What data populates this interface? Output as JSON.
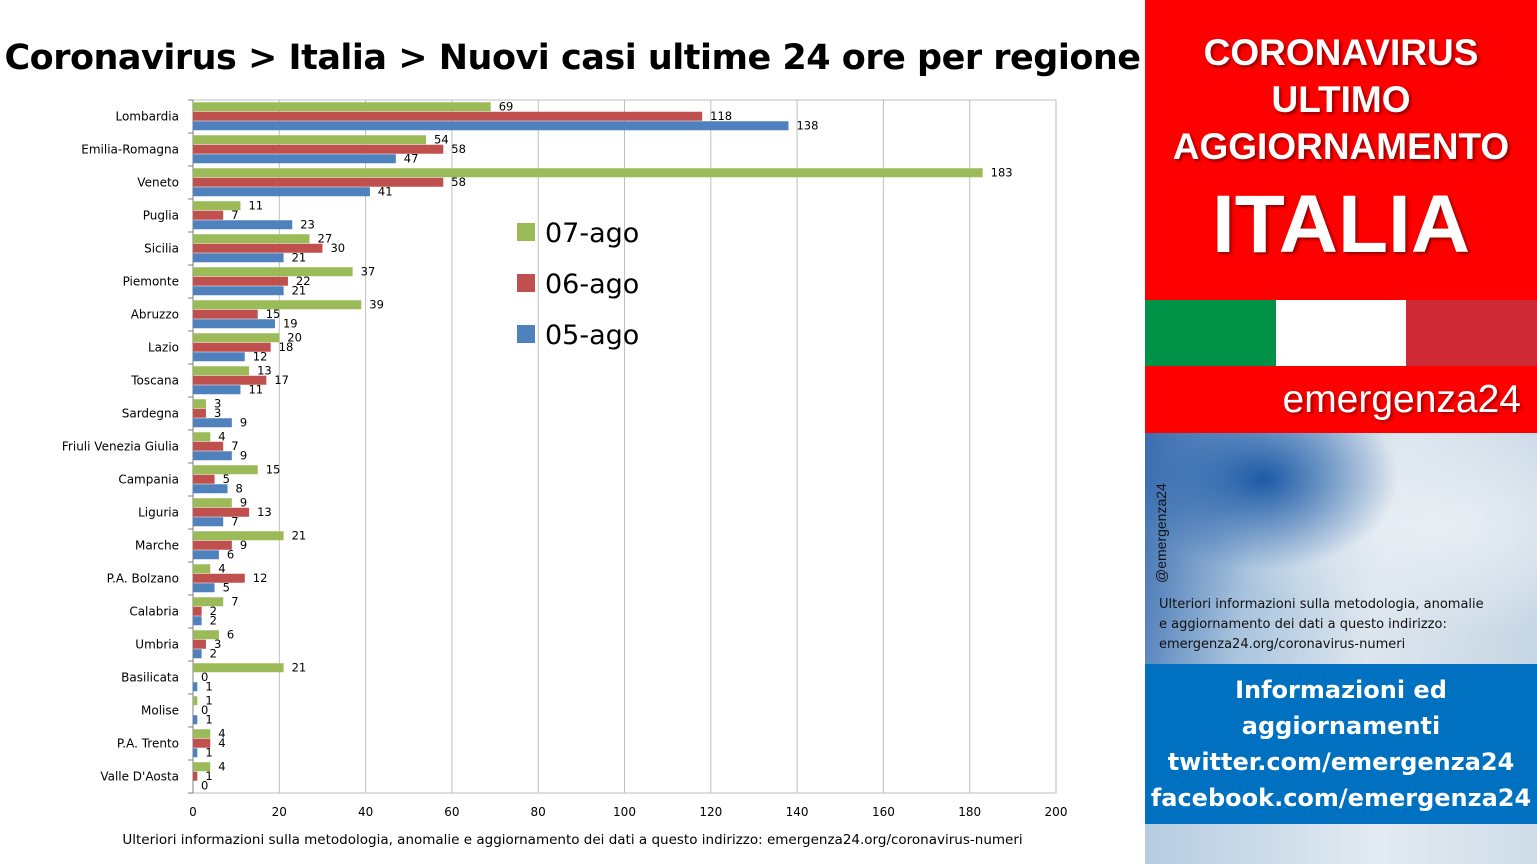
{
  "header": {
    "title": "Coronavirus > Italia > Nuovi casi ultime 24 ore per regione"
  },
  "footnote": "Ulteriori informazioni sulla metodologia, anomalie e aggiornamento dei dati a questo indirizzo: emergenza24.org/coronavirus-numeri",
  "sidebar": {
    "line1": "CORONAVIRUS",
    "line2": "ULTIMO",
    "line3": "AGGIORNAMENTO",
    "line4": "ITALIA",
    "brand": "emergenza24",
    "handle": "@emergenza24",
    "info": "Ulteriori informazioni sulla metodologia, anomalie e aggiornamento dei dati a questo indirizzo: emergenza24.org/coronavirus-numeri",
    "info_lines": [
      "Ulteriori informazioni sulla metodologia, anomalie",
      "e aggiornamento dei dati a questo indirizzo:",
      "emergenza24.org/coronavirus-numeri"
    ],
    "blue_line1": "Informazioni ed",
    "blue_line2": "aggiornamenti",
    "blue_line3": "twitter.com/emergenza24",
    "blue_line4": "facebook.com/emergenza24",
    "colors": {
      "red": "#fe0000",
      "blue": "#0070c0",
      "flag_green": "#009246",
      "flag_white": "#ffffff",
      "flag_red": "#ce2b37"
    }
  },
  "chart_data": {
    "type": "bar",
    "orientation": "horizontal",
    "categories": [
      "Lombardia",
      "Emilia-Romagna",
      "Veneto",
      "Puglia",
      "Sicilia",
      "Piemonte",
      "Abruzzo",
      "Lazio",
      "Toscana",
      "Sardegna",
      "Friuli Venezia Giulia",
      "Campania",
      "Liguria",
      "Marche",
      "P.A. Bolzano",
      "Calabria",
      "Umbria",
      "Basilicata",
      "Molise",
      "P.A. Trento",
      "Valle D'Aosta"
    ],
    "series": [
      {
        "name": "07-ago",
        "color": "#9bbb59",
        "values": [
          69,
          54,
          183,
          11,
          27,
          37,
          39,
          20,
          13,
          3,
          4,
          15,
          9,
          21,
          4,
          7,
          6,
          21,
          1,
          4,
          4
        ]
      },
      {
        "name": "06-ago",
        "color": "#c0504d",
        "values": [
          118,
          58,
          58,
          7,
          30,
          22,
          15,
          18,
          17,
          3,
          7,
          5,
          13,
          9,
          12,
          2,
          3,
          0,
          0,
          4,
          1
        ]
      },
      {
        "name": "05-ago",
        "color": "#4f81bd",
        "values": [
          138,
          47,
          41,
          23,
          21,
          21,
          19,
          12,
          11,
          9,
          9,
          8,
          7,
          6,
          5,
          2,
          2,
          1,
          1,
          1,
          0
        ]
      }
    ],
    "xlim": [
      0,
      200
    ],
    "xticks": [
      0,
      20,
      40,
      60,
      80,
      100,
      120,
      140,
      160,
      180,
      200
    ],
    "grid": true,
    "legend_position": "center"
  }
}
